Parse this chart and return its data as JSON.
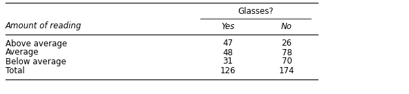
{
  "header_group": "Glasses?",
  "col_headers": [
    "Yes",
    "No"
  ],
  "row_label_header": "Amount of reading",
  "rows": [
    {
      "label": "Above average",
      "values": [
        "47",
        "26"
      ]
    },
    {
      "label": "Average",
      "values": [
        "48",
        "78"
      ]
    },
    {
      "label": "Below average",
      "values": [
        "31",
        "70"
      ]
    },
    {
      "label": "Total",
      "values": [
        "126",
        "174"
      ]
    }
  ],
  "bg_color": "#ffffff",
  "text_color": "#000000",
  "font_size": 8.5,
  "font_family": "DejaVu Sans"
}
